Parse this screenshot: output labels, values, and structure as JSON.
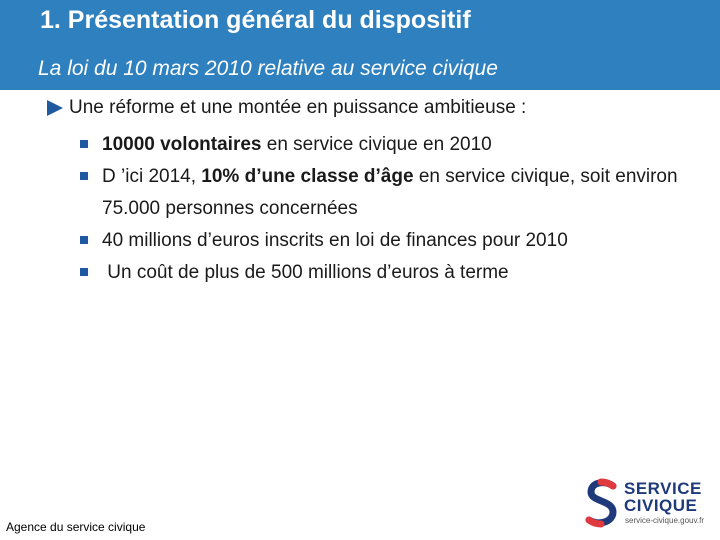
{
  "slide": {
    "title": "1. Présentation général du dispositif",
    "subtitle": "La loi du 10 mars 2010 relative au service civique",
    "lead": "Une réforme et une montée en puissance ambitieuse :",
    "bullets": [
      {
        "bold": "10000 volontaires",
        "rest": " en service civique en 2010"
      },
      {
        "pre": "D ’ici 2014, ",
        "bold": "10% d’une classe d’âge",
        "rest": " en service civique, soit environ 75.000 personnes concernées"
      },
      {
        "text": "40 millions d’euros inscrits en loi de finances pour 2010"
      },
      {
        "text": " Un coût de plus de 500 millions d’euros à terme"
      }
    ],
    "footer": "Agence du service civique"
  },
  "logo": {
    "line1": "SERVICE",
    "line2": "CIVIQUE",
    "url": "service-civique.gouv.fr",
    "colors": {
      "primary": "#1f3a7a",
      "accent": "#e0393e"
    }
  },
  "colors": {
    "header": "#2f80be",
    "bullet": "#1f5aa0"
  }
}
